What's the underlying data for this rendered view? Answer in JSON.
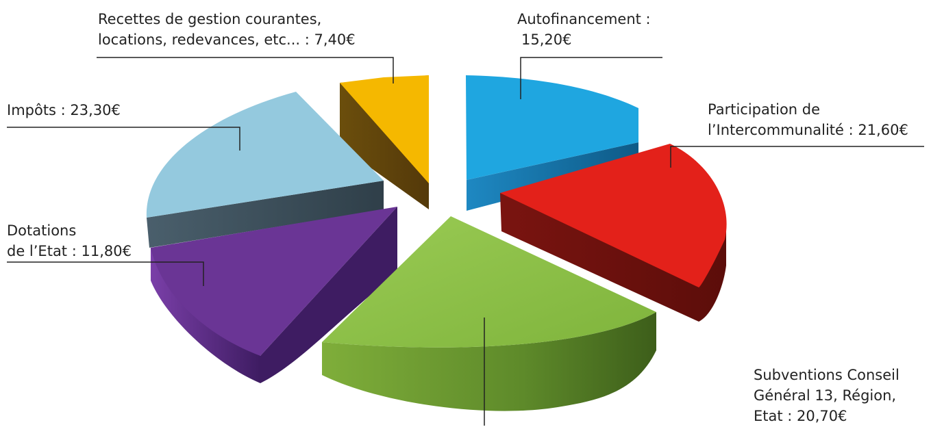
{
  "chart_data": {
    "type": "pie",
    "style": "3d-exploded",
    "legend": "none",
    "slices": [
      {
        "name": "Autofinancement",
        "value": 15.2,
        "display": "15,20€",
        "color": "#1FA2DD"
      },
      {
        "name": "Participation de l'Intercommunalité",
        "value": 21.6,
        "display": "21,60€",
        "color": "#E21F17"
      },
      {
        "name": "Subventions Conseil Général 13, Région, Etat",
        "value": 20.7,
        "display": "20,70€",
        "color": "#8BBD44"
      },
      {
        "name": "Dotations de l'Etat",
        "value": 11.8,
        "display": "11,80€",
        "color": "#5E2E8C"
      },
      {
        "name": "Impôts",
        "value": 23.3,
        "display": "23,30€",
        "color": "#8FC7DC"
      },
      {
        "name": "Recettes de gestion courantes, locations, redevances, etc...",
        "value": 7.4,
        "display": "7,40€",
        "color": "#F4B400"
      }
    ]
  },
  "labels": {
    "autofinancement": {
      "line1": "Autofinancement :",
      "line2": "15,20€"
    },
    "recettes": {
      "line1": "Recettes de gestion courantes,",
      "line2": "locations, redevances, etc... : 7,40€"
    },
    "participation": {
      "line1": "Participation de",
      "line2": "l’Intercommunalité : 21,60€"
    },
    "impots": {
      "line1": "Impôts : 23,30€"
    },
    "dotations": {
      "line1": "Dotations",
      "line2": "de l’Etat : 11,80€"
    },
    "subventions": {
      "line1": "Subventions Conseil",
      "line2": "Général 13, Région,",
      "line3": "Etat : 20,70€"
    }
  }
}
